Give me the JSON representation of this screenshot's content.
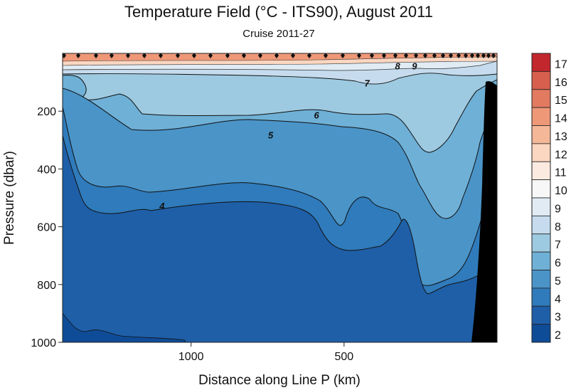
{
  "chart_data": {
    "type": "heatmap",
    "title": "Temperature Field  (°C - ITS90),  August 2011",
    "subtitle": "Cruise 2011-27",
    "xlabel": "Distance along Line P  (km)",
    "ylabel": "Pressure  (dbar)",
    "x_ticks": [
      1000,
      500
    ],
    "y_ticks": [
      200,
      400,
      600,
      800,
      1000
    ],
    "xlim": [
      1420,
      0
    ],
    "ylim": [
      0,
      1000
    ],
    "contour_labels": [
      {
        "text": "9",
        "x": 270,
        "y": 45
      },
      {
        "text": "8",
        "x": 325,
        "y": 45
      },
      {
        "text": "7",
        "x": 425,
        "y": 105
      },
      {
        "text": "6",
        "x": 590,
        "y": 215
      },
      {
        "text": "5",
        "x": 740,
        "y": 285
      },
      {
        "text": "4",
        "x": 1095,
        "y": 530
      }
    ],
    "colorbar": {
      "labels": [
        "17",
        "16",
        "15",
        "14",
        "13",
        "12",
        "11",
        "10",
        "9",
        "8",
        "7",
        "6",
        "5",
        "4",
        "3",
        "2"
      ],
      "colors": [
        "#c1272d",
        "#d6604d",
        "#e27a60",
        "#ee9878",
        "#f4b898",
        "#fbd6c0",
        "#fbeae0",
        "#f7f7f7",
        "#e0ebf4",
        "#c6dcee",
        "#9ecae1",
        "#6fb0d6",
        "#4a94c8",
        "#2f7bbb",
        "#1f5fa8",
        "#0f4c98"
      ]
    },
    "grid": false,
    "station_markers": true
  }
}
